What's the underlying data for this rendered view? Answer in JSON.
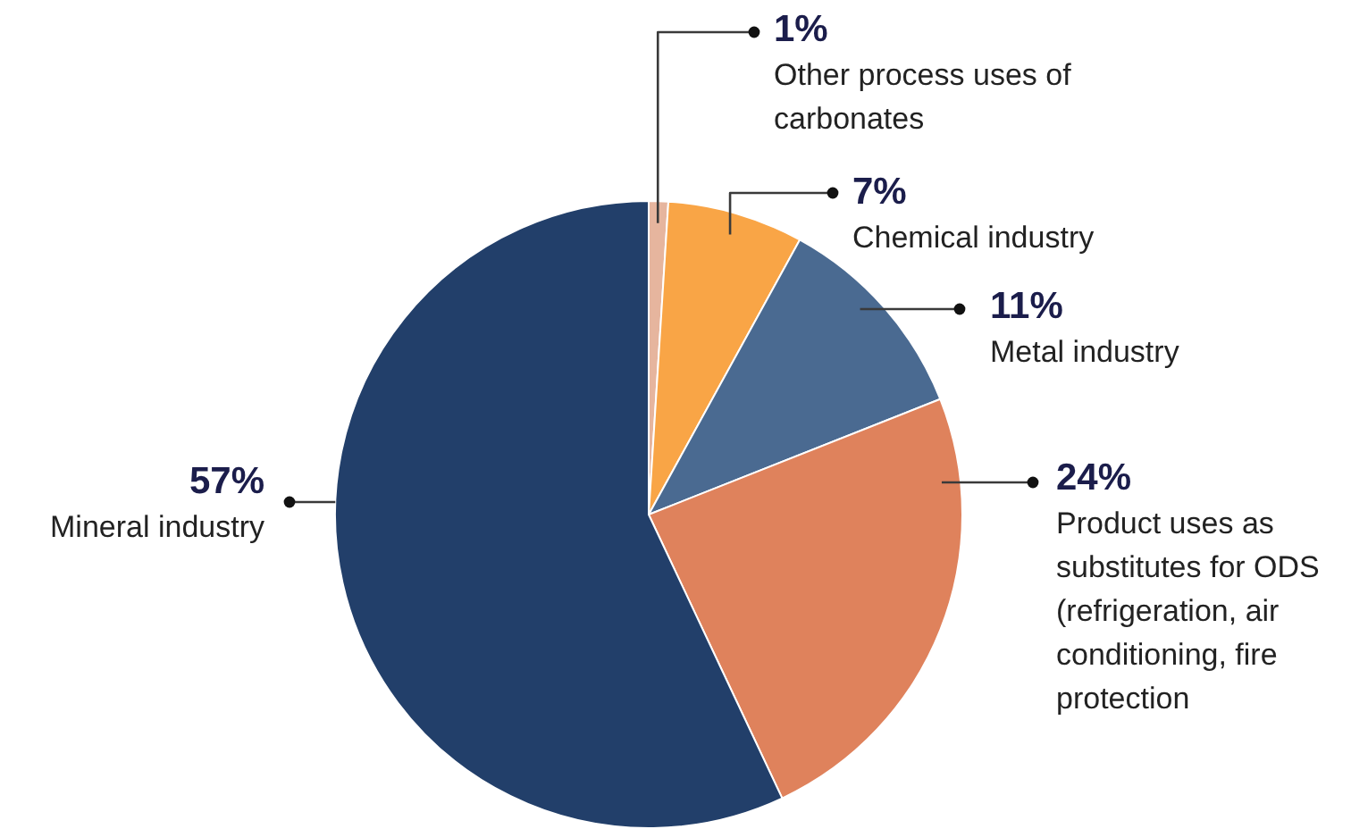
{
  "chart_data": {
    "type": "pie",
    "categories": [
      "Other process uses of carbonates",
      "Chemical industry",
      "Metal industry",
      "Product uses as substitutes for ODS (refrigeration, air conditioning, fire protection",
      "Mineral industry"
    ],
    "values": [
      1,
      7,
      11,
      24,
      57
    ],
    "colors": [
      "#e6b59e",
      "#f9a546",
      "#4a6a91",
      "#df825c",
      "#223f6a"
    ],
    "value_labels": [
      "1%",
      "7%",
      "11%",
      "24%",
      "57%"
    ]
  }
}
